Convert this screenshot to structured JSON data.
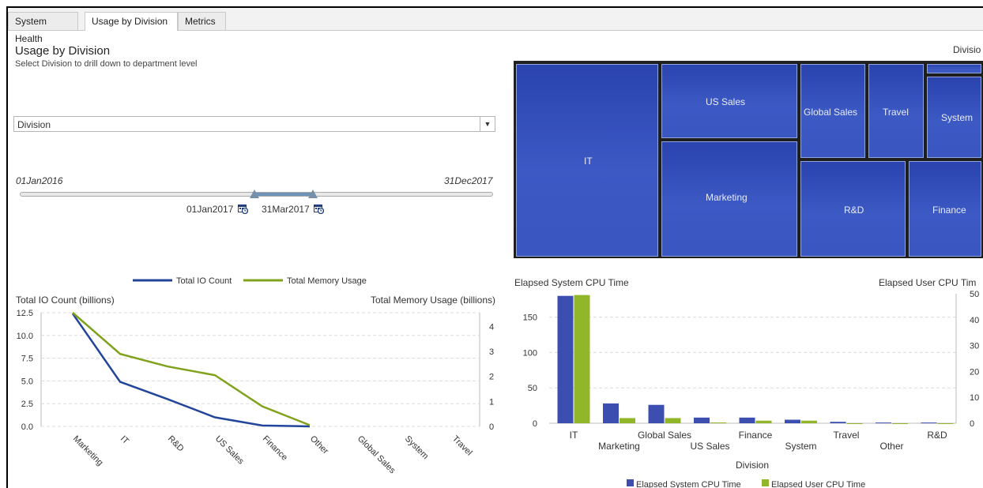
{
  "tabs": [
    {
      "label": "System Health"
    },
    {
      "label": "Usage by Division"
    },
    {
      "label": "Metrics"
    }
  ],
  "header": {
    "title": "Usage by Division",
    "subtitle": "Select Division to drill down to department level"
  },
  "division_select": {
    "value": "Division",
    "arrow": "▼"
  },
  "date_slider": {
    "min_label": "01Jan2016",
    "max_label": "31Dec2017",
    "start_label": "01Jan2017",
    "end_label": "31Mar2017",
    "start_icon": "calendar-icon",
    "end_icon": "calendar-icon"
  },
  "treemap": {
    "title": "Divisio",
    "tiles": [
      {
        "label": "IT"
      },
      {
        "label": "US Sales"
      },
      {
        "label": "Marketing"
      },
      {
        "label": "Global Sales"
      },
      {
        "label": "Travel"
      },
      {
        "label": "System"
      },
      {
        "label": "R&D"
      },
      {
        "label": "Finance"
      },
      {
        "label": ""
      }
    ]
  },
  "colors": {
    "blue": "#22449a",
    "green": "#80a21c",
    "bar_blue": "#3c4fb0",
    "bar_green": "#92b62a",
    "tile": "#3350bb"
  },
  "chart_data": [
    {
      "type": "line",
      "legend": [
        "Total IO Count",
        "Total Memory Usage"
      ],
      "legend_placement": "top",
      "ylabel": "Total IO Count (billions)",
      "y2label": "Total Memory Usage (billions)",
      "categories": [
        "Marketing",
        "IT",
        "R&D",
        "US Sales",
        "Finance",
        "Other",
        "Global Sales",
        "System",
        "Travel"
      ],
      "series": [
        {
          "name": "Total IO Count",
          "axis": "left",
          "values": [
            12.4,
            4.9,
            3.0,
            1.0,
            0.1,
            0.0,
            null,
            null,
            null
          ]
        },
        {
          "name": "Total Memory Usage",
          "axis": "right",
          "values": [
            4.55,
            2.9,
            2.4,
            2.05,
            0.8,
            0.05,
            null,
            null,
            null
          ]
        }
      ],
      "ylim": [
        0,
        12.5
      ],
      "y_ticks": [
        "0.0",
        "2.5",
        "5.0",
        "7.5",
        "10.0",
        "12.5"
      ],
      "y2lim": [
        0,
        4.55
      ],
      "y2_ticks": [
        "0",
        "1",
        "2",
        "3",
        "4"
      ],
      "grid": true
    },
    {
      "type": "bar",
      "ylabel": "Elapsed System CPU Time",
      "y2label": "Elapsed User CPU Tim",
      "xlabel": "Division",
      "legend": [
        "Elapsed System CPU Time",
        "Elapsed User CPU Time"
      ],
      "legend_placement": "bottom",
      "categories": [
        "IT",
        "Marketing",
        "Global Sales",
        "US Sales",
        "Finance",
        "System",
        "Travel",
        "Other",
        "R&D"
      ],
      "series": [
        {
          "name": "Elapsed System CPU Time",
          "axis": "left",
          "values": [
            180,
            28,
            26,
            8,
            8,
            5,
            2,
            1,
            1
          ]
        },
        {
          "name": "Elapsed User CPU Time",
          "axis": "right",
          "values": [
            49.5,
            2,
            2,
            0.3,
            1,
            1,
            0,
            0,
            0
          ]
        }
      ],
      "ylim": [
        0,
        183
      ],
      "y_ticks": [
        "0",
        "50",
        "100",
        "150"
      ],
      "y2lim": [
        0,
        50
      ],
      "y2_ticks": [
        "0",
        "10",
        "20",
        "30",
        "40",
        "50"
      ],
      "grid": true
    }
  ]
}
